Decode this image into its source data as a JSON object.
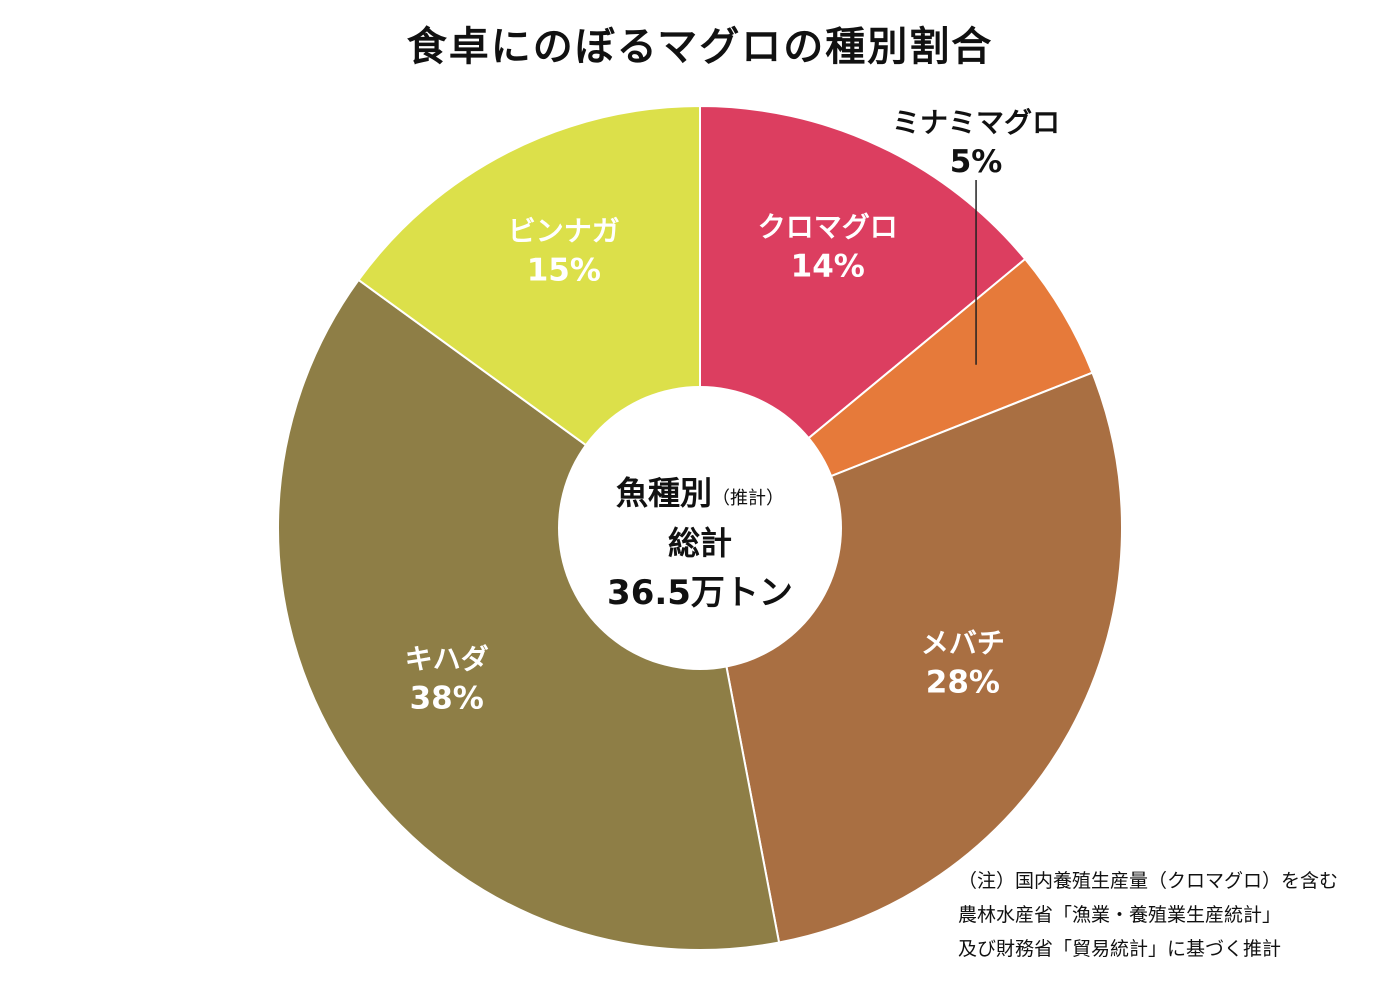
{
  "chart_data": {
    "type": "pie",
    "title": "食卓にのぼるマグロの種別割合",
    "categories": [
      "クロマグロ",
      "ミナミマグロ",
      "メバチ",
      "キハダ",
      "ビンナガ"
    ],
    "values": [
      14,
      5,
      28,
      38,
      15
    ],
    "value_labels": [
      "14%",
      "5%",
      "28%",
      "38%",
      "15%"
    ],
    "colors": [
      "#dc3e60",
      "#e67a3a",
      "#a96f42",
      "#8e7e46",
      "#dce04a"
    ],
    "center": {
      "line1": "魚種別",
      "line1_note": "（推計）",
      "line2": "総計",
      "line3": "36.5万トン"
    }
  },
  "note": {
    "lines": [
      "（注）国内養殖生産量（クロマグロ）を含む",
      "農林水産省「漁業・養殖業生産統計」",
      "及び財務省「貿易統計」に基づく推計"
    ]
  }
}
